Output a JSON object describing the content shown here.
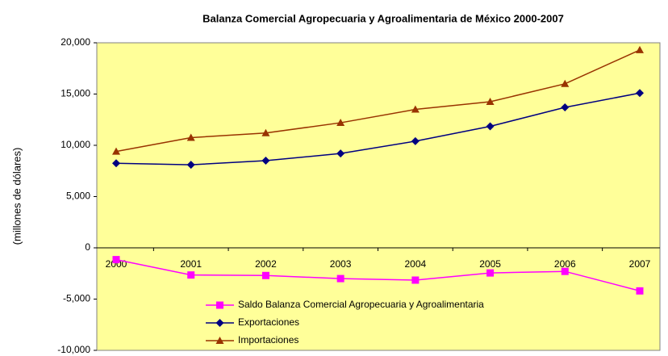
{
  "chart_data": {
    "type": "line",
    "title": "Balanza Comercial Agropecuaria y Agroalimentaria de México 2000-2007",
    "y_label": "(millones de dólares)",
    "categories": [
      "2000",
      "2001",
      "2002",
      "2003",
      "2004",
      "2005",
      "2006",
      "2007"
    ],
    "series": [
      {
        "name": "Saldo Balanza Comercial Agropecuaria y Agroalimentaria",
        "color": "#ff00ff",
        "marker": "square",
        "values": [
          -1150,
          -2650,
          -2700,
          -3000,
          -3150,
          -2450,
          -2300,
          -4200
        ]
      },
      {
        "name": "Exportaciones",
        "color": "#000080",
        "marker": "diamond",
        "values": [
          8250,
          8100,
          8500,
          9200,
          10400,
          11850,
          13700,
          15100
        ]
      },
      {
        "name": "Importaciones",
        "color": "#993300",
        "marker": "triangle",
        "values": [
          9400,
          10750,
          11200,
          12200,
          13500,
          14250,
          16000,
          19300
        ]
      }
    ],
    "ylim": [
      -10000,
      20000
    ],
    "yticks": [
      {
        "value": -10000,
        "label": "-10,000"
      },
      {
        "value": -5000,
        "label": "-5,000"
      },
      0,
      {
        "value": 5000,
        "label": "5,000"
      },
      {
        "value": 10000,
        "label": "10,000"
      },
      {
        "value": 15000,
        "label": "15,000"
      },
      {
        "value": 20000,
        "label": "20,000"
      }
    ],
    "plot_background": "#ffff99"
  }
}
